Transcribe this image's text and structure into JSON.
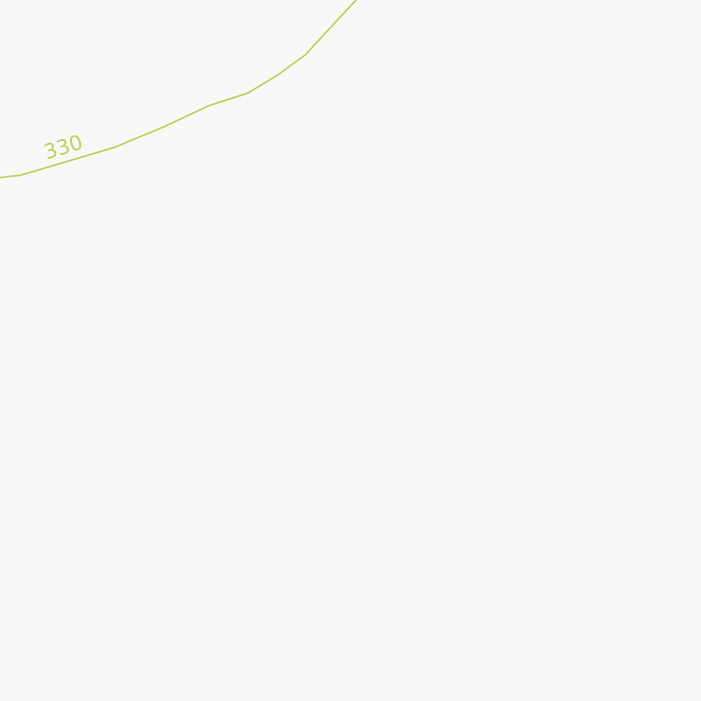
{
  "map": {
    "background_color": "#f8f8f8",
    "contour": {
      "elevation_label": "330",
      "color": "#bdd35a"
    }
  }
}
